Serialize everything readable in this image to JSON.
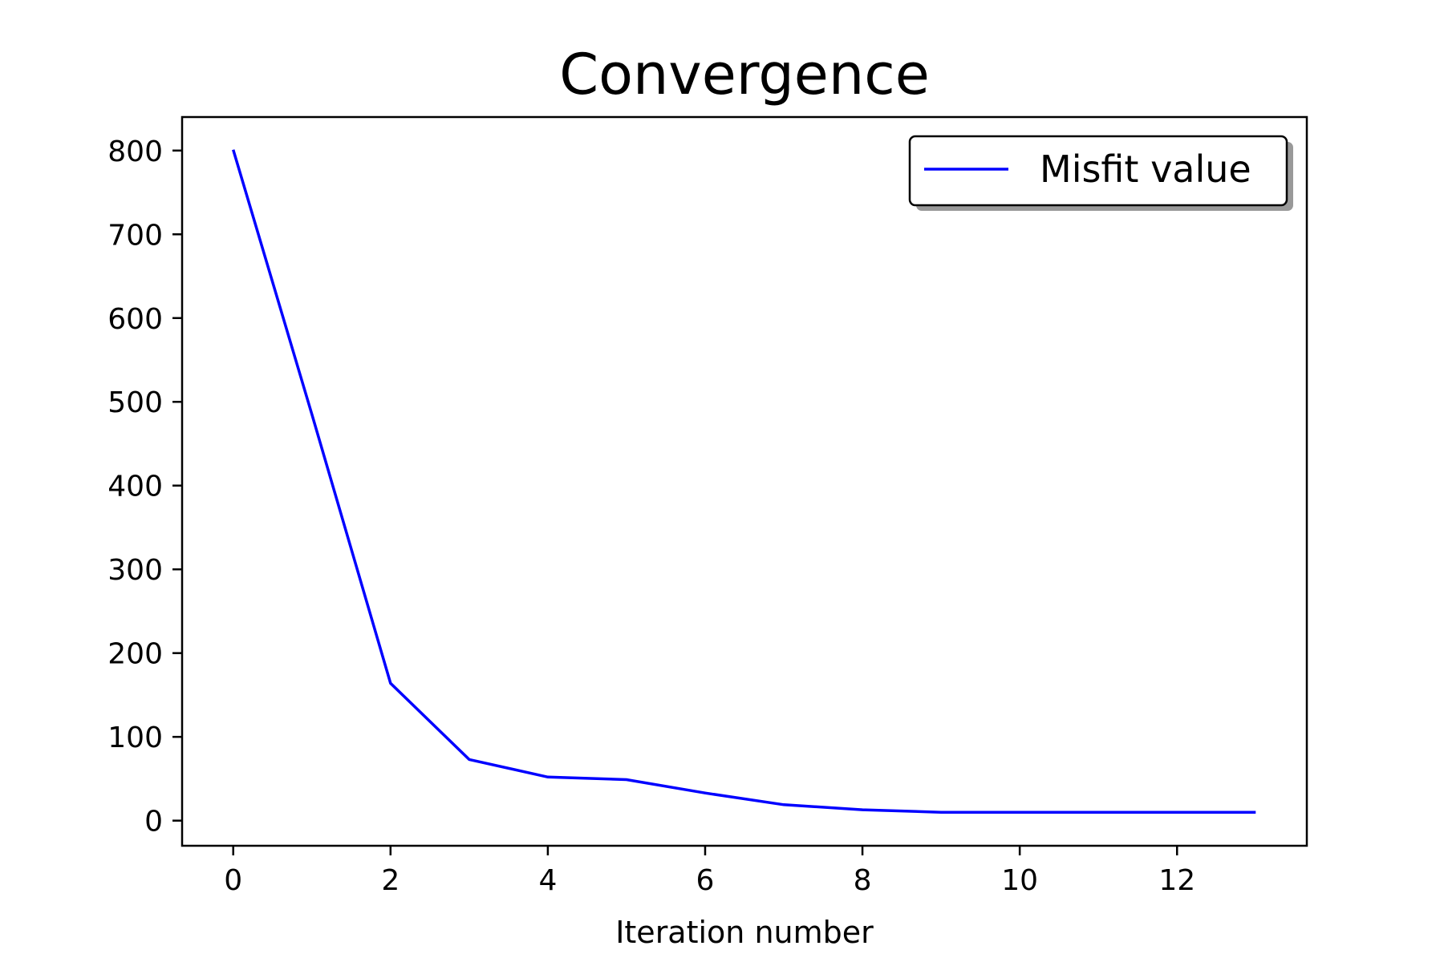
{
  "chart_data": {
    "type": "line",
    "title": "Convergence",
    "xlabel": "Iteration number",
    "ylabel": "",
    "xlim": [
      -0.65,
      13.65
    ],
    "ylim": [
      -30,
      840
    ],
    "xticks": [
      0,
      2,
      4,
      6,
      8,
      10,
      12
    ],
    "yticks": [
      0,
      100,
      200,
      300,
      400,
      500,
      600,
      700,
      800
    ],
    "grid": false,
    "legend_position": "top-right",
    "series": [
      {
        "name": "Misfit value",
        "color": "#0000ff",
        "x": [
          0,
          1,
          2,
          3,
          4,
          5,
          6,
          7,
          8,
          9,
          10,
          11,
          12,
          13
        ],
        "y": [
          801,
          485,
          164,
          73,
          52,
          49,
          33,
          19,
          13,
          10,
          10,
          10,
          10,
          10
        ]
      }
    ]
  }
}
